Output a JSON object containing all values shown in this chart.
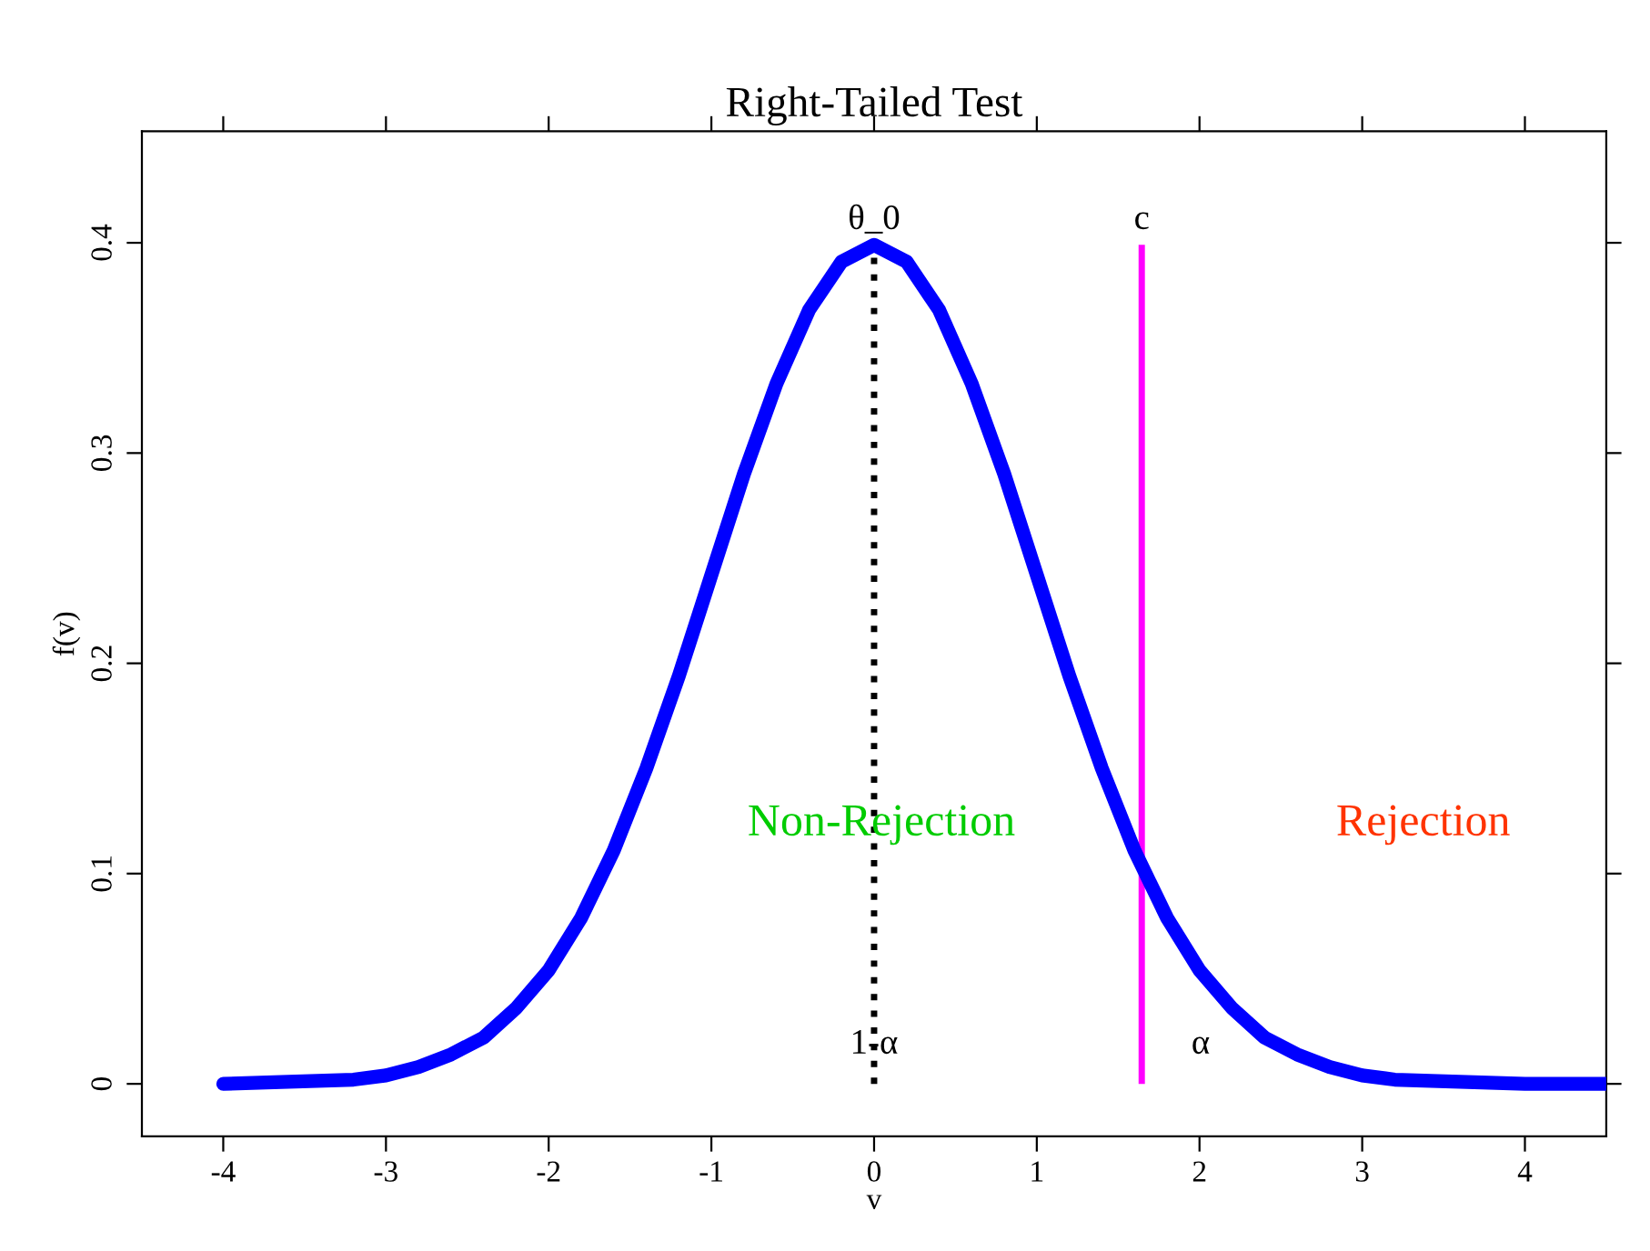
{
  "chart_data": {
    "type": "line",
    "title": "Right-Tailed Test",
    "xlabel": "v",
    "ylabel": "f(v)",
    "xlim": [
      -4.5,
      4.5
    ],
    "ylim": [
      -0.025,
      0.453
    ],
    "xticks": [
      -4,
      -3,
      -2,
      -1,
      0,
      1,
      2,
      3,
      4
    ],
    "yticks": [
      0,
      0.1,
      0.2,
      0.3,
      0.4
    ],
    "marker": "none",
    "series": [
      {
        "color": "#0000ff",
        "line_style": "solid",
        "x": [
          -4,
          -3.6,
          -3.2,
          -3,
          -2.8,
          -2.6,
          -2.4,
          -2.2,
          -2,
          -1.8,
          -1.6,
          -1.4,
          -1.2,
          -1,
          -0.8,
          -0.6,
          -0.4,
          -0.2,
          0,
          0.2,
          0.4,
          0.6,
          0.8,
          1,
          1.2,
          1.4,
          1.6,
          1.8,
          2,
          2.2,
          2.4,
          2.6,
          2.8,
          3,
          3.2,
          3.6,
          4,
          4.5
        ],
        "values": [
          0,
          0.001,
          0.002,
          0.004,
          0.008,
          0.014,
          0.022,
          0.036,
          0.054,
          0.079,
          0.111,
          0.15,
          0.194,
          0.242,
          0.29,
          0.333,
          0.368,
          0.391,
          0.399,
          0.391,
          0.368,
          0.333,
          0.29,
          0.242,
          0.194,
          0.15,
          0.111,
          0.079,
          0.054,
          0.036,
          0.022,
          0.014,
          0.008,
          0.004,
          0.002,
          0.001,
          0,
          0
        ]
      }
    ],
    "ref_lines": [
      {
        "axis": "x",
        "value": 0,
        "label": "θ_0",
        "color": "#000000",
        "line_style": "dotted"
      },
      {
        "axis": "x",
        "value": 1.645,
        "label": "c",
        "color": "#ff00ff",
        "line_style": "solid"
      }
    ],
    "annotations": [
      "Non-Rejection",
      "Rejection",
      "1-α",
      "α"
    ]
  }
}
